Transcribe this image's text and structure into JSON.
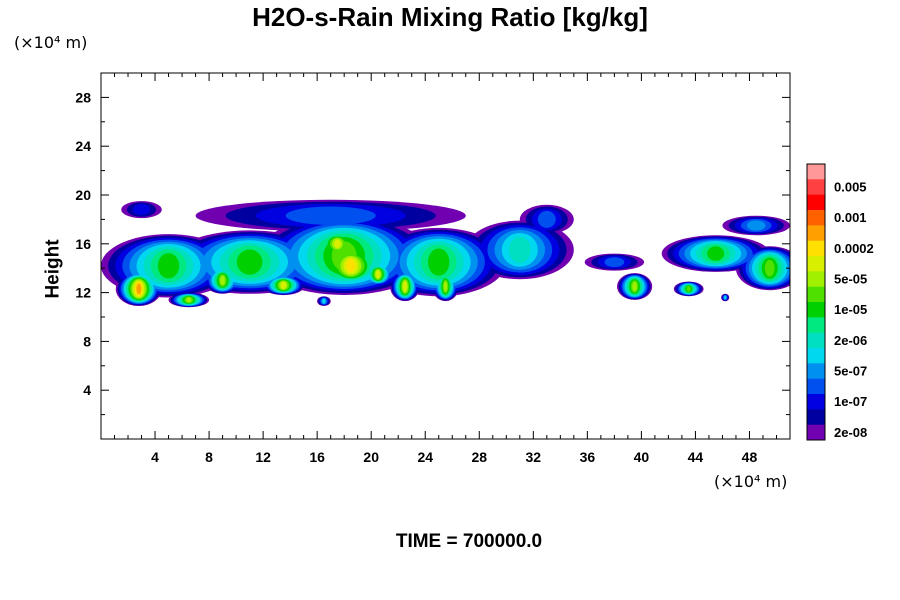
{
  "chart_data": {
    "type": "heatmap",
    "title": "H2O-s-Rain Mixing Ratio [kg/kg]",
    "xlabel": "",
    "ylabel": "Height",
    "x_unit": "(×10⁴ m)",
    "y_unit": "(×10⁴ m)",
    "xlim": [
      0,
      51
    ],
    "ylim": [
      0,
      30
    ],
    "x_ticks": [
      4,
      8,
      12,
      16,
      20,
      24,
      28,
      32,
      36,
      40,
      44,
      48
    ],
    "y_ticks": [
      4,
      8,
      12,
      16,
      20,
      24,
      28
    ],
    "legend_position": "right",
    "colorbar": {
      "labels": [
        "0.005",
        "0.001",
        "0.0002",
        "5e-05",
        "1e-05",
        "2e-06",
        "5e-07",
        "1e-07",
        "2e-08"
      ],
      "colors_top_to_bottom": [
        "#ff9999",
        "#ff4040",
        "#ff0000",
        "#ff6000",
        "#ffa000",
        "#ffe000",
        "#d8f000",
        "#a0f000",
        "#50e000",
        "#00d000",
        "#00e880",
        "#00e0c0",
        "#00d8f0",
        "#0090f0",
        "#0050f0",
        "#0000e0",
        "#0000a0",
        "#7000b0"
      ]
    },
    "cloud_regions": [
      {
        "x_range": [
          0,
          35
        ],
        "y_range": [
          10.5,
          19.5
        ],
        "max_level": "0.0002",
        "core_x": [
          2,
          4
        ],
        "core_y": [
          11,
          13
        ]
      },
      {
        "x_range": [
          35,
          51
        ],
        "y_range": [
          11,
          18.5
        ],
        "max_level": "5e-05"
      }
    ],
    "time_label": "TIME = 700000.0"
  }
}
